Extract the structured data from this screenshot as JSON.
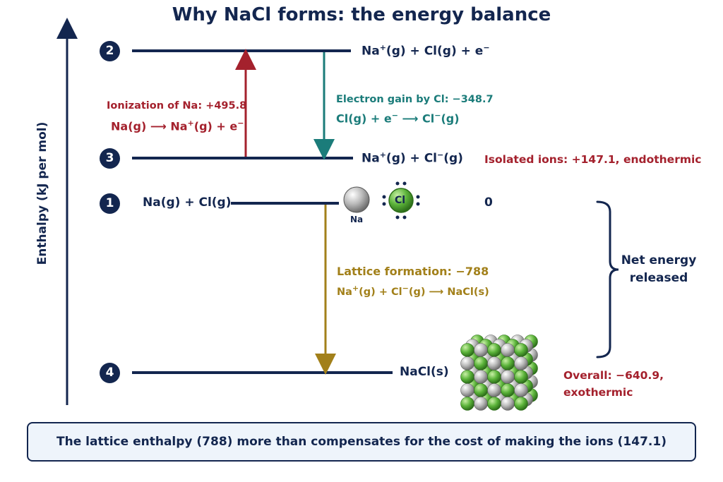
{
  "title": "Why NaCl forms: the energy balance",
  "axis_label": "Enthalpy (kJ per mol)",
  "levels": [
    {
      "badge": "1",
      "label": "Na(g) + Cl(g)",
      "value": "0"
    },
    {
      "badge": "2",
      "label_main": "Na",
      "label_sup": "+",
      "label_rest": "(g) + Cl(g) + e",
      "label_sup2": "−"
    },
    {
      "badge": "3",
      "label_main": "Na",
      "label_sup": "+",
      "label_mid": "(g) + Cl",
      "label_sup2": "−",
      "label_rest": "(g)"
    },
    {
      "badge": "4",
      "label": "NaCl(s)"
    }
  ],
  "steps": {
    "ionization": {
      "title": "Ionization of  Na:  +495.8",
      "eq_a": "Na(g) ⟶ Na",
      "eq_sup": "+",
      "eq_b": "(g) + e",
      "eq_sup2": "−",
      "color": "#a4212d"
    },
    "electron_gain": {
      "title": "Electron gain by Cl: −348.7",
      "eq_a": "Cl(g) + e",
      "eq_sup": "−",
      "eq_b": " ⟶ Cl",
      "eq_sup2": "−",
      "eq_c": "(g)",
      "color": "#1b7c7a"
    },
    "lattice": {
      "title": "Lattice formation: −788",
      "eq_a": "Na",
      "eq_sup": "+",
      "eq_b": "(g) + Cl",
      "eq_sup2": "−",
      "eq_c": "(g) ⟶ NaCl(s)",
      "color": "#a2801a"
    }
  },
  "annotations": {
    "isolated_ions": "Isolated ions: +147.1,  endothermic",
    "net_line1": "Net energy",
    "net_line2": "released",
    "overall_line1": "Overall: −640.9,",
    "overall_line2": "exothermic"
  },
  "atoms": {
    "na_label": "Na",
    "cl_label": "Cl"
  },
  "footer": "The lattice enthalpy (788) more than compensates for the cost of making the ions (147.1)"
}
